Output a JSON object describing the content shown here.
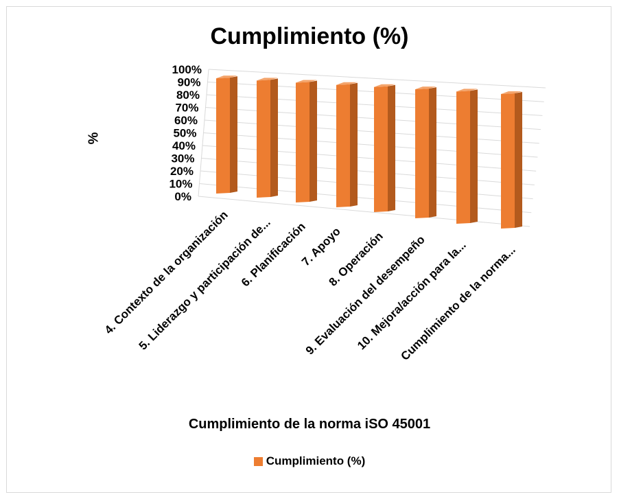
{
  "chart_data": {
    "type": "bar",
    "title": "Cumplimiento (%)",
    "xlabel": "Cumplimiento de la norma iSO 45001",
    "ylabel": "%",
    "categories": [
      "4. Contexto de la organización",
      "5. Liderazgo y participación de...",
      "6. Planificación",
      "7. Apoyo",
      "8. Operación",
      "9. Evaluación del desempeño",
      "10. Mejora/acción para la...",
      "Cumplimiento de la norma..."
    ],
    "series": [
      {
        "name": "Cumplimiento (%)",
        "values": [
          100,
          100,
          100,
          100,
          100,
          100,
          100,
          100
        ]
      }
    ],
    "ylim": [
      0,
      100
    ],
    "yticks": [
      "0%",
      "10%",
      "20%",
      "30%",
      "40%",
      "50%",
      "60%",
      "70%",
      "80%",
      "90%",
      "100%"
    ],
    "grid": true,
    "legend_position": "bottom",
    "colors": {
      "bar_front": "#ed7d31",
      "bar_side": "#b35a1d",
      "bar_top": "#f4a46b",
      "grid": "#d9d9d9"
    }
  }
}
